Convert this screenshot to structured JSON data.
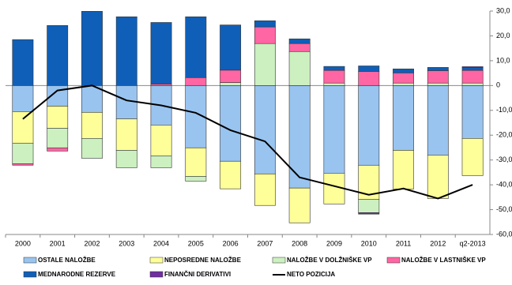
{
  "chart_data": {
    "type": "bar",
    "categories": [
      "2000",
      "2001",
      "2002",
      "2003",
      "2004",
      "2005",
      "2006",
      "2007",
      "2008",
      "2009",
      "2010",
      "2011",
      "2012",
      "q2-2013"
    ],
    "series": [
      {
        "name": "OSTALE NALOŽBE",
        "color": "#99c4f0",
        "values": [
          -10.5,
          -8.3,
          -10.8,
          -13.4,
          -15.9,
          -25.1,
          -30.5,
          -35.6,
          -41.3,
          -35.3,
          -32.1,
          -26.1,
          -28,
          -21.3
        ]
      },
      {
        "name": "NEPOSREDNE NALOŽBE",
        "color": "#ffff99",
        "values": [
          -12.7,
          -8.9,
          -10.5,
          -12.7,
          -12.4,
          -11.5,
          -11.1,
          -12.7,
          -14,
          -12.4,
          -13.7,
          -15.6,
          -17.5,
          -15
        ]
      },
      {
        "name": "NALOŽBE V DOLŽNIŠKE VP",
        "color": "#ccf0c0",
        "values": [
          -8.3,
          -7.9,
          -8,
          -7,
          -4.8,
          -1.9,
          1.2,
          16.9,
          13.7,
          1,
          -5.4,
          1,
          1,
          1
        ]
      },
      {
        "name": "NALOŽBE V LASTNIŠKE VP",
        "color": "#ff66a3",
        "values": [
          -0.6,
          -1.3,
          0,
          0,
          0.6,
          3.2,
          5,
          6.7,
          3.2,
          5.1,
          5.7,
          4.1,
          5,
          5.1
        ]
      },
      {
        "name": "MEDNARODNE REZERVE",
        "color": "#0f5fb8",
        "values": [
          18.5,
          24.2,
          29.9,
          27.7,
          24.8,
          24.5,
          18.2,
          2.5,
          1.9,
          1.6,
          2.2,
          1.6,
          1.3,
          1.2
        ]
      },
      {
        "name": "FINANČNI DERIVATIVI",
        "color": "#7030a0",
        "values": [
          0,
          0,
          0,
          0,
          0,
          0,
          0,
          0,
          0,
          0,
          -0.6,
          0,
          0,
          0.3
        ]
      }
    ],
    "line": {
      "name": "NETO POZICIJA",
      "color": "#000000",
      "values": [
        -13.5,
        -2,
        0,
        -6,
        -8,
        -11,
        -18,
        -22.5,
        -37,
        -40.5,
        -44,
        -41.5,
        -45.5,
        -40
      ]
    },
    "ylim": [
      -60,
      30
    ],
    "yticks": [
      {
        "value": -60,
        "label": "-60,0"
      },
      {
        "value": -50,
        "label": "-50,0"
      },
      {
        "value": -40,
        "label": "-40,0"
      },
      {
        "value": -30,
        "label": "-30,0"
      },
      {
        "value": -20,
        "label": "-20,0"
      },
      {
        "value": -10,
        "label": "-10,0"
      },
      0,
      {
        "value": 10,
        "label": "10,0"
      },
      {
        "value": 20,
        "label": "20,0"
      },
      {
        "value": 30,
        "label": "30,0"
      }
    ]
  }
}
